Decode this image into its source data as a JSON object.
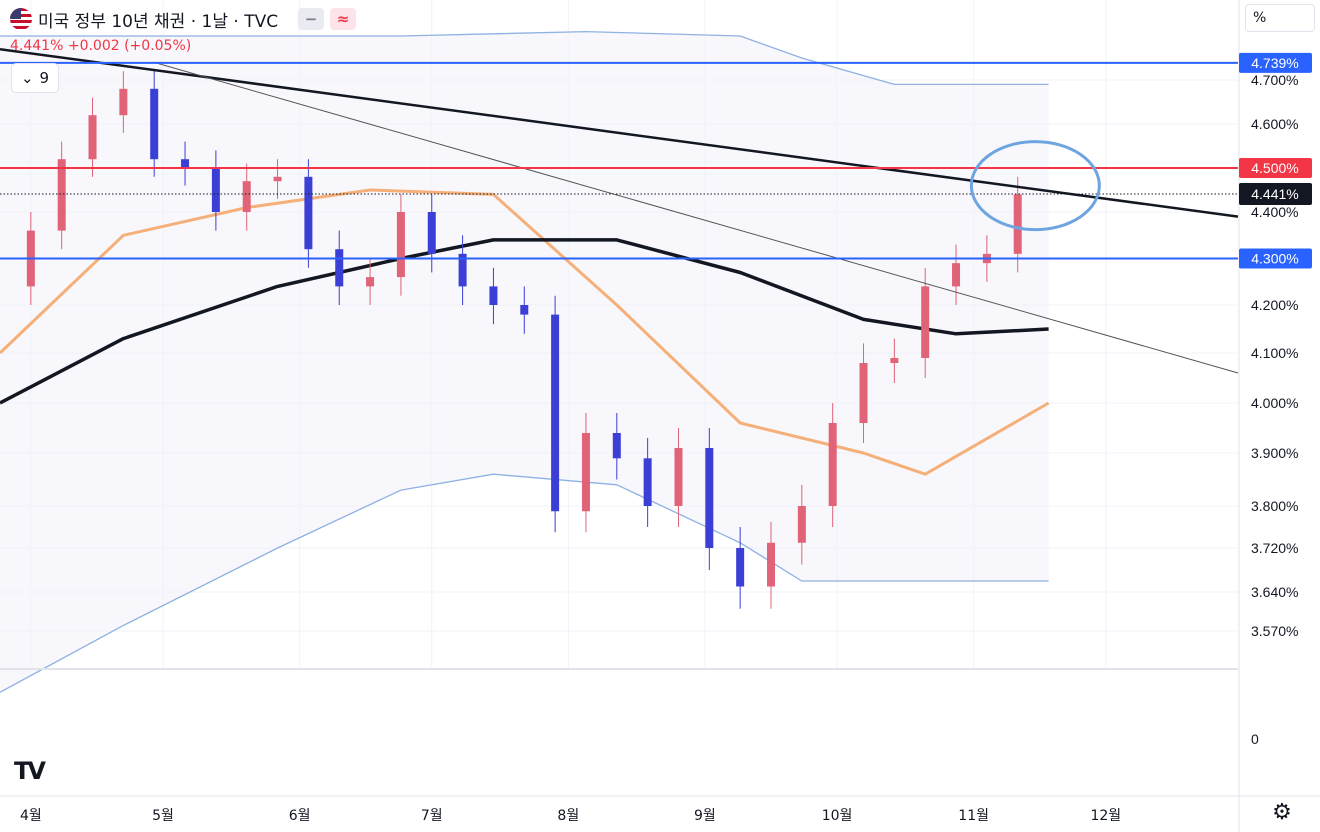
{
  "header": {
    "symbol_title": "미국 정부 10년 채권 · 1날 · TVC",
    "icon_minus": "minus-icon",
    "icon_approx": "approx-icon",
    "quote": "4.441% +0.002 (+0.05%)",
    "collapse_label": "9",
    "scale_mode": "%"
  },
  "chart_data": {
    "type": "line",
    "title": "미국 정부 10년 채권 · 1날 · TVC",
    "x_ticks": [
      "4월",
      "5월",
      "6월",
      "7월",
      "8월",
      "9월",
      "10월",
      "11월",
      "12월"
    ],
    "y_ticks": [
      "4.700%",
      "4.600%",
      "4.400%",
      "4.200%",
      "4.100%",
      "4.000%",
      "3.900%",
      "3.800%",
      "3.720%",
      "3.640%",
      "3.570%"
    ],
    "lower_pane_tick": "0",
    "last_price": 4.441,
    "change": 0.002,
    "change_pct": 0.05,
    "horizontal_lines": [
      {
        "value": 4.739,
        "label": "4.739%",
        "color": "#2962ff"
      },
      {
        "value": 4.5,
        "label": "4.500%",
        "color": "#f23645"
      },
      {
        "value": 4.3,
        "label": "4.300%",
        "color": "#2962ff"
      }
    ],
    "last_price_label": "4.441%",
    "series": [
      {
        "values": [
          [
            "2024-03-25",
            4.24
          ],
          [
            "2024-04-01",
            4.36
          ],
          [
            "2024-04-08",
            4.52
          ],
          [
            "2024-04-15",
            4.62
          ],
          [
            "2024-04-22",
            4.68
          ],
          [
            "2024-04-29",
            4.52
          ],
          [
            "2024-05-06",
            4.5
          ],
          [
            "2024-05-13",
            4.4
          ],
          [
            "2024-05-20",
            4.47
          ],
          [
            "2024-05-27",
            4.48
          ],
          [
            "2024-06-03",
            4.32
          ],
          [
            "2024-06-10",
            4.24
          ],
          [
            "2024-06-17",
            4.26
          ],
          [
            "2024-06-24",
            4.4
          ],
          [
            "2024-07-01",
            4.31
          ],
          [
            "2024-07-08",
            4.24
          ],
          [
            "2024-07-15",
            4.2
          ],
          [
            "2024-07-22",
            4.18
          ],
          [
            "2024-07-29",
            3.79
          ],
          [
            "2024-08-05",
            3.94
          ],
          [
            "2024-08-12",
            3.89
          ],
          [
            "2024-08-19",
            3.8
          ],
          [
            "2024-08-26",
            3.91
          ],
          [
            "2024-09-02",
            3.72
          ],
          [
            "2024-09-09",
            3.65
          ],
          [
            "2024-09-16",
            3.73
          ],
          [
            "2024-09-23",
            3.8
          ],
          [
            "2024-09-30",
            3.96
          ],
          [
            "2024-10-07",
            4.08
          ],
          [
            "2024-10-14",
            4.09
          ],
          [
            "2024-10-21",
            4.24
          ],
          [
            "2024-10-28",
            4.29
          ],
          [
            "2024-11-04",
            4.31
          ],
          [
            "2024-11-11",
            4.44
          ]
        ]
      }
    ],
    "moving_averages": [
      {
        "color": "#f5b07a",
        "values": [
          [
            "2024-03-25",
            4.1
          ],
          [
            "2024-04-22",
            4.35
          ],
          [
            "2024-05-20",
            4.41
          ],
          [
            "2024-06-17",
            4.45
          ],
          [
            "2024-07-15",
            4.44
          ],
          [
            "2024-08-12",
            4.2
          ],
          [
            "2024-09-09",
            3.96
          ],
          [
            "2024-10-07",
            3.9
          ],
          [
            "2024-10-21",
            3.86
          ],
          [
            "2024-11-18",
            4.0
          ]
        ]
      },
      {
        "color": "#131722",
        "values": [
          [
            "2024-03-25",
            4.0
          ],
          [
            "2024-04-22",
            4.13
          ],
          [
            "2024-05-27",
            4.24
          ],
          [
            "2024-06-24",
            4.3
          ],
          [
            "2024-07-15",
            4.34
          ],
          [
            "2024-08-12",
            4.34
          ],
          [
            "2024-09-09",
            4.27
          ],
          [
            "2024-10-07",
            4.17
          ],
          [
            "2024-10-28",
            4.14
          ],
          [
            "2024-11-18",
            4.15
          ]
        ]
      }
    ],
    "bands": {
      "color": "#8fb1e3",
      "upper": [
        [
          "2024-03-25",
          4.8
        ],
        [
          "2024-06-24",
          4.8
        ],
        [
          "2024-08-05",
          4.81
        ],
        [
          "2024-09-09",
          4.8
        ],
        [
          "2024-09-23",
          4.75
        ],
        [
          "2024-10-14",
          4.69
        ],
        [
          "2024-11-18",
          4.69
        ]
      ],
      "lower": [
        [
          "2024-03-25",
          3.46
        ],
        [
          "2024-04-22",
          3.58
        ],
        [
          "2024-05-27",
          3.72
        ],
        [
          "2024-06-24",
          3.83
        ],
        [
          "2024-07-15",
          3.86
        ],
        [
          "2024-08-12",
          3.84
        ],
        [
          "2024-09-09",
          3.73
        ],
        [
          "2024-09-23",
          3.66
        ],
        [
          "2024-11-18",
          3.66
        ]
      ]
    },
    "trend_lines": [
      {
        "color": "#131722",
        "style": "thick",
        "points": [
          [
            "2024-03-25",
            4.77
          ],
          [
            "2024-12-31",
            4.39
          ]
        ]
      },
      {
        "color": "#555555",
        "style": "thin",
        "points": [
          [
            "2024-04-29",
            4.74
          ],
          [
            "2024-12-31",
            4.06
          ]
        ]
      }
    ],
    "highlight_ellipse": {
      "center": [
        "2024-11-15",
        4.46
      ],
      "color": "#6ea5e0"
    },
    "ylim": [
      3.55,
      4.79
    ],
    "xlim": [
      "2024-03-25",
      "2024-12-31"
    ]
  }
}
